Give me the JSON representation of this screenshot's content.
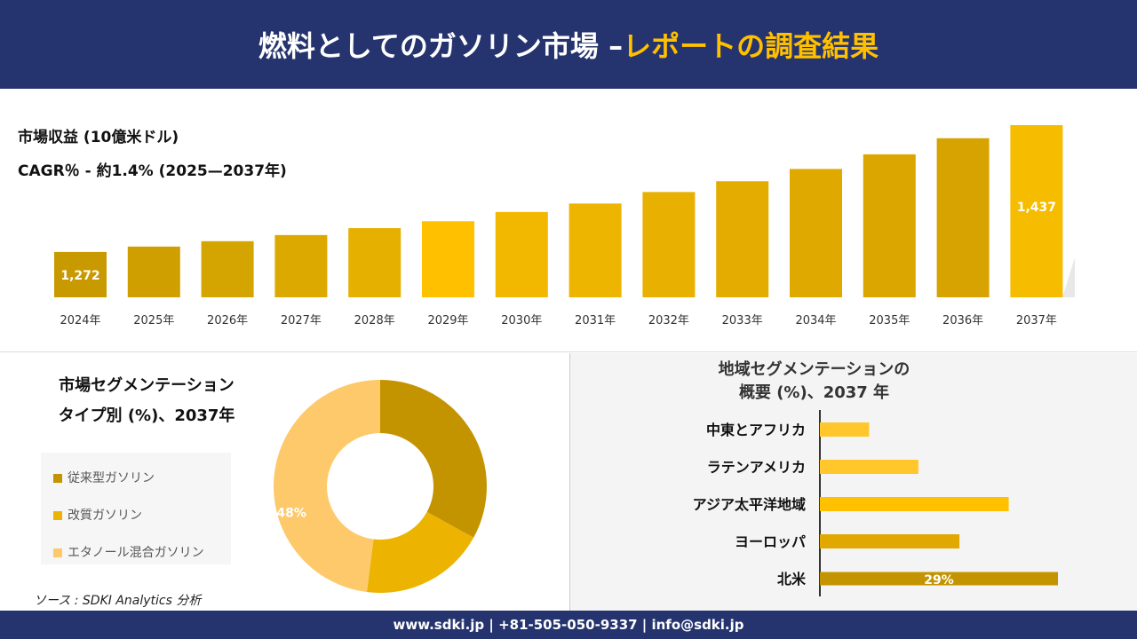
{
  "header": {
    "title_main": "燃料としてのガソリン市場 –",
    "title_accent": "レポートの調査結果"
  },
  "info": {
    "revenue_label": "市場収益 (10億米ドル)",
    "cagr_label": "CAGR％ - 約1.4% (2025—2037年)"
  },
  "chart_data": [
    {
      "type": "bar",
      "categories": [
        "2024年",
        "2025年",
        "2026年",
        "2027年",
        "2028年",
        "2029年",
        "2030年",
        "2031年",
        "2032年",
        "2033年",
        "2034年",
        "2035年",
        "2036年",
        "2037年"
      ],
      "values": [
        1272,
        1279,
        1286,
        1294,
        1303,
        1312,
        1324,
        1335,
        1350,
        1364,
        1380,
        1399,
        1420,
        1437
      ],
      "data_labels": {
        "0": "1,272",
        "13": "1,437"
      },
      "ylim": [
        1213,
        1437
      ],
      "grid": false,
      "colors": [
        "#c99a00",
        "#cf9f00",
        "#d4a400",
        "#dca900",
        "#e6b000",
        "#ffc000",
        "#f2b800",
        "#edb400",
        "#e8b000",
        "#e4ac00",
        "#dfa900",
        "#dba600",
        "#d6a300",
        "#f5bc00"
      ]
    },
    {
      "type": "pie",
      "title": "市場セグメンテーション タイプ別 (%)、2037年",
      "title_lines": [
        "市場セグメンテーション",
        "タイプ別 (%)、2037年"
      ],
      "categories": [
        "従来型ガソリン",
        "改質ガソリン",
        "エタノール混合ガソリン"
      ],
      "values": [
        33,
        19,
        48
      ],
      "data_labels": {
        "2": "48%"
      },
      "colors": [
        "#c49400",
        "#ecb400",
        "#fdc96a"
      ],
      "donut": true,
      "legend": "left"
    },
    {
      "type": "bar",
      "orientation": "horizontal",
      "title": "地域セグメンテーションの 概要 (%)、2037 年",
      "title_lines": [
        "地域セグメンテーションの",
        "概要 (%)、2037 年"
      ],
      "categories": [
        "中東とアフリカ",
        "ラテンアメリカ",
        "アジア太平洋地域",
        "ヨーロッパ",
        "北米"
      ],
      "values": [
        6,
        12,
        23,
        17,
        29
      ],
      "data_labels": {
        "4": "29%"
      },
      "colors": [
        "#ffc72c",
        "#ffc72c",
        "#ffc000",
        "#e0a800",
        "#c49400"
      ]
    }
  ],
  "source": "ソース : SDKI Analytics 分析",
  "footer": "www.sdki.jp | +81-505-050-9337 | info@sdki.jp"
}
